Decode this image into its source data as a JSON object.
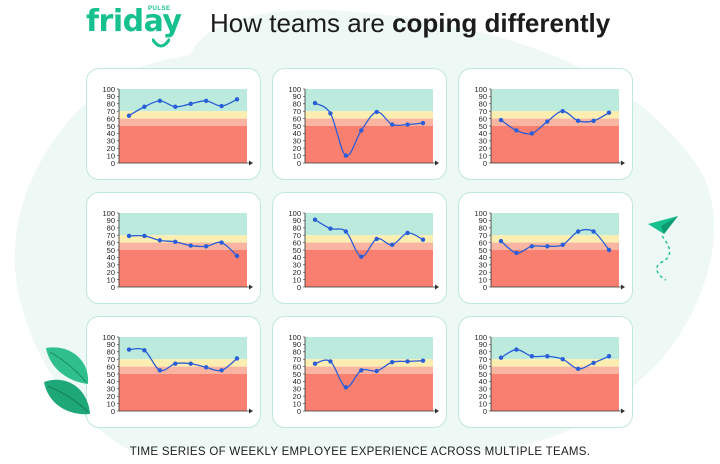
{
  "brand": {
    "word": "friday",
    "sub": "PULSE"
  },
  "header": {
    "title_prefix": "How teams are ",
    "title_bold": "coping differently"
  },
  "caption": "TIME SERIES OF WEEKLY EMPLOYEE EXPERIENCE ACROSS MULTIPLE TEAMS.",
  "colors": {
    "accent": "#17c08f",
    "band_high": "#bcebdd",
    "band_mid": "#fbeeb0",
    "band_low_light": "#f9b5a1",
    "band_low": "#f98070",
    "line": "#2a5ed8",
    "card_border": "#bfe9d9",
    "blob": "#eef8f4"
  },
  "chart_data": [
    {
      "type": "line",
      "x": [
        1,
        2,
        3,
        4,
        5,
        6,
        7,
        8
      ],
      "y": [
        64,
        76,
        84,
        76,
        80,
        84,
        77,
        86
      ],
      "ylim": [
        0,
        100
      ],
      "yticks": [
        0,
        10,
        20,
        30,
        40,
        50,
        60,
        70,
        80,
        90,
        100
      ],
      "bands": [
        70,
        60,
        50
      ]
    },
    {
      "type": "line",
      "x": [
        1,
        2,
        3,
        4,
        5,
        6,
        7,
        8
      ],
      "y": [
        81,
        67,
        10,
        44,
        69,
        52,
        52,
        54
      ],
      "ylim": [
        0,
        100
      ],
      "yticks": [
        0,
        10,
        20,
        30,
        40,
        50,
        60,
        70,
        80,
        90,
        100
      ],
      "bands": [
        70,
        60,
        50
      ]
    },
    {
      "type": "line",
      "x": [
        1,
        2,
        3,
        4,
        5,
        6,
        7,
        8
      ],
      "y": [
        58,
        44,
        40,
        56,
        70,
        57,
        57,
        68
      ],
      "ylim": [
        0,
        100
      ],
      "yticks": [
        0,
        10,
        20,
        30,
        40,
        50,
        60,
        70,
        80,
        90,
        100
      ],
      "bands": [
        70,
        60,
        50
      ]
    },
    {
      "type": "line",
      "x": [
        1,
        2,
        3,
        4,
        5,
        6,
        7,
        8
      ],
      "y": [
        69,
        69,
        63,
        61,
        56,
        55,
        60,
        42
      ],
      "ylim": [
        0,
        100
      ],
      "yticks": [
        0,
        10,
        20,
        30,
        40,
        50,
        60,
        70,
        80,
        90,
        100
      ],
      "bands": [
        70,
        60,
        50
      ]
    },
    {
      "type": "line",
      "x": [
        1,
        2,
        3,
        4,
        5,
        6,
        7,
        8
      ],
      "y": [
        91,
        79,
        75,
        41,
        65,
        57,
        73,
        64
      ],
      "ylim": [
        0,
        100
      ],
      "yticks": [
        0,
        10,
        20,
        30,
        40,
        50,
        60,
        70,
        80,
        90,
        100
      ],
      "bands": [
        70,
        60,
        50
      ]
    },
    {
      "type": "line",
      "x": [
        1,
        2,
        3,
        4,
        5,
        6,
        7,
        8
      ],
      "y": [
        62,
        46,
        55,
        55,
        57,
        75,
        75,
        50
      ],
      "ylim": [
        0,
        100
      ],
      "yticks": [
        0,
        10,
        20,
        30,
        40,
        50,
        60,
        70,
        80,
        90,
        100
      ],
      "bands": [
        70,
        60,
        50
      ]
    },
    {
      "type": "line",
      "x": [
        1,
        2,
        3,
        4,
        5,
        6,
        7,
        8
      ],
      "y": [
        83,
        82,
        55,
        64,
        64,
        59,
        55,
        71
      ],
      "ylim": [
        0,
        100
      ],
      "yticks": [
        0,
        10,
        20,
        30,
        40,
        50,
        60,
        70,
        80,
        90,
        100
      ],
      "bands": [
        70,
        60,
        50
      ]
    },
    {
      "type": "line",
      "x": [
        1,
        2,
        3,
        4,
        5,
        6,
        7,
        8
      ],
      "y": [
        64,
        67,
        32,
        55,
        54,
        66,
        67,
        68
      ],
      "ylim": [
        0,
        100
      ],
      "yticks": [
        0,
        10,
        20,
        30,
        40,
        50,
        60,
        70,
        80,
        90,
        100
      ],
      "bands": [
        70,
        60,
        50
      ]
    },
    {
      "type": "line",
      "x": [
        1,
        2,
        3,
        4,
        5,
        6,
        7,
        8
      ],
      "y": [
        72,
        83,
        74,
        74,
        70,
        57,
        65,
        74
      ],
      "ylim": [
        0,
        100
      ],
      "yticks": [
        0,
        10,
        20,
        30,
        40,
        50,
        60,
        70,
        80,
        90,
        100
      ],
      "bands": [
        70,
        60,
        50
      ]
    }
  ]
}
